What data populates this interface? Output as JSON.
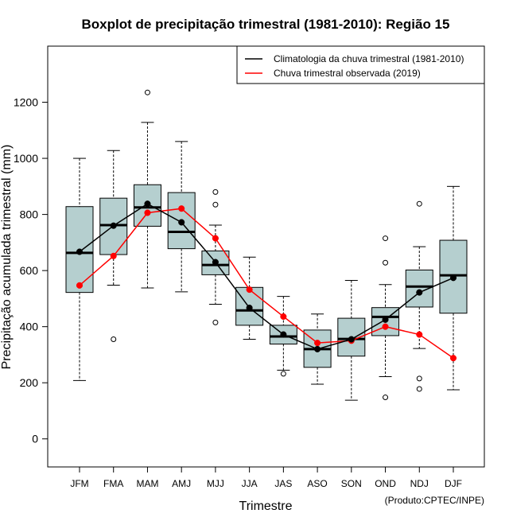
{
  "chart_data": {
    "type": "boxplot",
    "title": "Boxplot de precipitação trimestral (1981-2010): Região 15",
    "xlabel": "Trimestre",
    "ylabel": "Precipitação acumulada trimestral (mm)",
    "credit": "(Produto:CPTEC/INPE)",
    "ylim": [
      -100,
      1400
    ],
    "yticks": [
      0,
      200,
      400,
      600,
      800,
      1000,
      1200
    ],
    "categories": [
      "JFM",
      "FMA",
      "MAM",
      "AMJ",
      "MJJ",
      "JJA",
      "JAS",
      "ASO",
      "SON",
      "OND",
      "NDJ",
      "DJF"
    ],
    "boxes": [
      {
        "whisker_low": 208,
        "q1": 522,
        "median": 663,
        "q3": 828,
        "whisker_high": 1000,
        "outliers": []
      },
      {
        "whisker_low": 548,
        "q1": 657,
        "median": 762,
        "q3": 858,
        "whisker_high": 1028,
        "outliers": [
          355
        ]
      },
      {
        "whisker_low": 538,
        "q1": 758,
        "median": 825,
        "q3": 906,
        "whisker_high": 1128,
        "outliers": [
          1235
        ]
      },
      {
        "whisker_low": 524,
        "q1": 678,
        "median": 738,
        "q3": 878,
        "whisker_high": 1060,
        "outliers": []
      },
      {
        "whisker_low": 480,
        "q1": 585,
        "median": 620,
        "q3": 670,
        "whisker_high": 762,
        "outliers": [
          880,
          835,
          415
        ]
      },
      {
        "whisker_low": 355,
        "q1": 405,
        "median": 458,
        "q3": 540,
        "whisker_high": 648,
        "outliers": []
      },
      {
        "whisker_low": 245,
        "q1": 338,
        "median": 365,
        "q3": 405,
        "whisker_high": 508,
        "outliers": [
          232
        ]
      },
      {
        "whisker_low": 195,
        "q1": 255,
        "median": 320,
        "q3": 388,
        "whisker_high": 445,
        "outliers": []
      },
      {
        "whisker_low": 138,
        "q1": 295,
        "median": 356,
        "q3": 430,
        "whisker_high": 565,
        "outliers": []
      },
      {
        "whisker_low": 222,
        "q1": 368,
        "median": 435,
        "q3": 468,
        "whisker_high": 550,
        "outliers": [
          715,
          628,
          148
        ]
      },
      {
        "whisker_low": 322,
        "q1": 470,
        "median": 543,
        "q3": 602,
        "whisker_high": 685,
        "outliers": [
          838,
          215,
          178
        ]
      },
      {
        "whisker_low": 175,
        "q1": 448,
        "median": 583,
        "q3": 708,
        "whisker_high": 900,
        "outliers": []
      }
    ],
    "series": [
      {
        "name": "Climatologia da chuva trimestral (1981-2010)",
        "color": "#000000",
        "values": [
          667,
          760,
          838,
          772,
          630,
          467,
          372,
          320,
          355,
          425,
          522,
          574
        ]
      },
      {
        "name": "Chuva trimestral observada (2019)",
        "color": "#ff0000",
        "values": [
          547,
          652,
          806,
          821,
          715,
          532,
          436,
          342,
          350,
          400,
          372,
          288
        ]
      }
    ],
    "box_fill": "#b5cfcf",
    "legend_position": "top-right"
  }
}
